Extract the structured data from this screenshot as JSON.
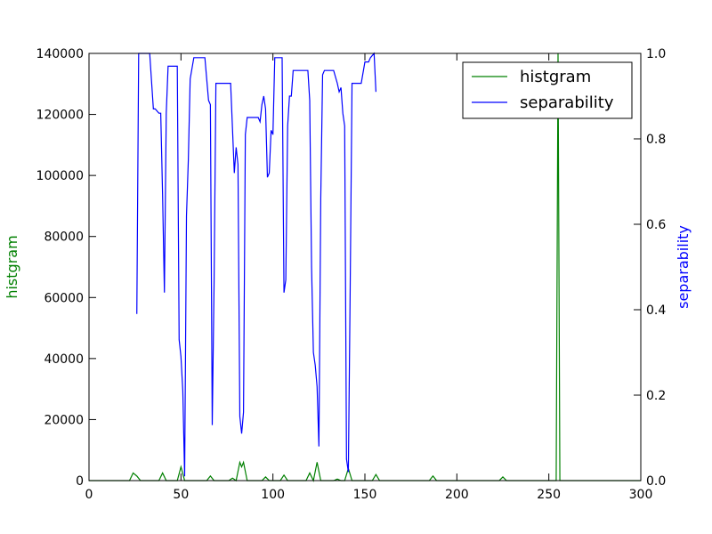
{
  "chart_data": {
    "type": "line",
    "xlim": [
      0,
      300
    ],
    "x_ticks": [
      0,
      50,
      100,
      150,
      200,
      250,
      300
    ],
    "left_axis": {
      "label": "histgram",
      "color": "#008000",
      "ylim": [
        0,
        140000
      ],
      "ticks": [
        0,
        20000,
        40000,
        60000,
        80000,
        100000,
        120000,
        140000
      ]
    },
    "right_axis": {
      "label": "separability",
      "color": "#0000ff",
      "ylim": [
        0,
        1.0
      ],
      "ticks": [
        "0.0",
        "0.2",
        "0.4",
        "0.6",
        "0.8",
        "1.0"
      ]
    },
    "legend": {
      "placement": "top-right"
    },
    "series": [
      {
        "name": "histgram",
        "axis": "left",
        "color": "#008000",
        "x": [
          0,
          22,
          24,
          26,
          28,
          38,
          40,
          42,
          48,
          50,
          52,
          54,
          64,
          66,
          68,
          76,
          78,
          80,
          82,
          83,
          84,
          86,
          94,
          96,
          98,
          104,
          106,
          108,
          118,
          120,
          122,
          124,
          126,
          133,
          135,
          137,
          139,
          141,
          143,
          154,
          156,
          158,
          185,
          187,
          189,
          223,
          225,
          227,
          253,
          254,
          255,
          256,
          300
        ],
        "y": [
          0,
          0,
          2500,
          1500,
          0,
          0,
          2500,
          0,
          0,
          4500,
          0,
          0,
          0,
          1500,
          0,
          0,
          800,
          0,
          6000,
          4500,
          6000,
          0,
          0,
          1200,
          0,
          0,
          1800,
          0,
          0,
          2500,
          0,
          6000,
          0,
          0,
          500,
          0,
          0,
          4000,
          0,
          0,
          2000,
          0,
          0,
          1500,
          0,
          0,
          1200,
          0,
          0,
          0,
          140000,
          0,
          0
        ]
      },
      {
        "name": "separability",
        "axis": "right",
        "color": "#0000ff",
        "x": [
          26,
          27,
          33,
          35,
          36,
          38,
          39,
          40,
          41,
          42,
          43,
          48,
          49,
          50,
          51,
          52,
          53,
          54,
          55,
          57,
          63,
          65,
          66,
          67,
          68,
          69,
          70,
          77,
          79,
          80,
          81,
          82,
          83,
          84,
          85,
          86,
          92,
          93,
          94,
          95,
          96,
          97,
          98,
          99,
          100,
          101,
          105,
          106,
          107,
          108,
          109,
          110,
          111,
          119,
          120,
          121,
          122,
          123,
          124,
          125,
          126,
          127,
          128,
          133,
          135,
          136,
          137,
          138,
          139,
          140,
          141,
          142,
          143,
          148,
          150,
          152,
          153,
          155,
          156
        ],
        "y": [
          0.39,
          1.0,
          1.0,
          0.87,
          0.87,
          0.86,
          0.86,
          0.67,
          0.44,
          0.86,
          0.97,
          0.97,
          0.33,
          0.29,
          0.21,
          0.01,
          0.62,
          0.75,
          0.94,
          0.99,
          0.99,
          0.89,
          0.88,
          0.13,
          0.46,
          0.93,
          0.93,
          0.93,
          0.72,
          0.78,
          0.74,
          0.15,
          0.11,
          0.16,
          0.81,
          0.85,
          0.85,
          0.84,
          0.88,
          0.9,
          0.87,
          0.71,
          0.72,
          0.82,
          0.81,
          0.99,
          0.99,
          0.44,
          0.47,
          0.83,
          0.9,
          0.9,
          0.96,
          0.96,
          0.89,
          0.5,
          0.3,
          0.27,
          0.22,
          0.08,
          0.66,
          0.95,
          0.96,
          0.96,
          0.93,
          0.91,
          0.92,
          0.86,
          0.83,
          0.05,
          0.02,
          0.45,
          0.93,
          0.93,
          0.98,
          0.98,
          0.99,
          1.0,
          0.91
        ]
      }
    ]
  }
}
